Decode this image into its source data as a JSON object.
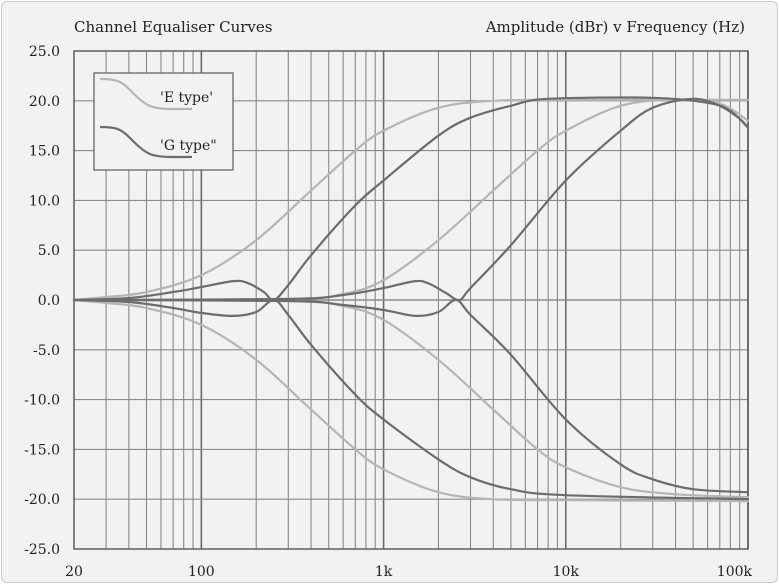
{
  "chart_data": {
    "type": "line",
    "title_left": "Channel Equaliser Curves",
    "title_right": "Amplitude (dBr)  v  Frequency (Hz)",
    "xscale": "log",
    "xlim": [
      20,
      100000
    ],
    "ylim": [
      -25,
      25
    ],
    "x_ticks": [
      {
        "value": 20,
        "label": "20"
      },
      {
        "value": 100,
        "label": "100"
      },
      {
        "value": 1000,
        "label": "1k"
      },
      {
        "value": 10000,
        "label": "10k"
      },
      {
        "value": 100000,
        "label": "100k"
      }
    ],
    "y_ticks": [
      {
        "value": 25,
        "label": "25.0"
      },
      {
        "value": 20,
        "label": "20.0"
      },
      {
        "value": 15,
        "label": "15.0"
      },
      {
        "value": 10,
        "label": "10.0"
      },
      {
        "value": 5,
        "label": "5.0"
      },
      {
        "value": 0,
        "label": "0.0"
      },
      {
        "value": -5,
        "label": "-5.0"
      },
      {
        "value": -10,
        "label": "-10.0"
      },
      {
        "value": -15,
        "label": "-15.0"
      },
      {
        "value": -20,
        "label": "-20.0"
      },
      {
        "value": -25,
        "label": "-25.0"
      }
    ],
    "grid": true,
    "legend_position": "top-left",
    "legend": [
      {
        "label": "'E type'",
        "color": "#b5b5b5"
      },
      {
        "label": "'G type\"",
        "color": "#6c6c6c"
      }
    ],
    "series": [
      {
        "group": "E",
        "color": "#b5b5b5",
        "points": [
          [
            20,
            0
          ],
          [
            30,
            0.3
          ],
          [
            50,
            0.8
          ],
          [
            100,
            2.5
          ],
          [
            200,
            6
          ],
          [
            400,
            11
          ],
          [
            700,
            15
          ],
          [
            1000,
            17
          ],
          [
            2000,
            19.3
          ],
          [
            4000,
            20
          ],
          [
            10000,
            20.1
          ],
          [
            100000,
            20.1
          ]
        ]
      },
      {
        "group": "E",
        "color": "#b5b5b5",
        "points": [
          [
            20,
            0
          ],
          [
            30,
            -0.3
          ],
          [
            50,
            -0.8
          ],
          [
            100,
            -2.5
          ],
          [
            200,
            -6
          ],
          [
            400,
            -11
          ],
          [
            700,
            -15
          ],
          [
            1000,
            -17
          ],
          [
            2000,
            -19.3
          ],
          [
            4000,
            -20
          ],
          [
            10000,
            -20.1
          ],
          [
            100000,
            -20.2
          ]
        ]
      },
      {
        "group": "E",
        "color": "#b5b5b5",
        "points": [
          [
            20,
            0
          ],
          [
            300,
            0.1
          ],
          [
            600,
            0.6
          ],
          [
            1000,
            2
          ],
          [
            2000,
            6
          ],
          [
            4000,
            11
          ],
          [
            7000,
            15
          ],
          [
            10000,
            17
          ],
          [
            20000,
            19.5
          ],
          [
            40000,
            20.1
          ],
          [
            70000,
            19.7
          ],
          [
            100000,
            18
          ]
        ]
      },
      {
        "group": "E",
        "color": "#b5b5b5",
        "points": [
          [
            20,
            0
          ],
          [
            300,
            -0.1
          ],
          [
            600,
            -0.6
          ],
          [
            1000,
            -2
          ],
          [
            2000,
            -6
          ],
          [
            4000,
            -11
          ],
          [
            7000,
            -15
          ],
          [
            10000,
            -16.8
          ],
          [
            20000,
            -18.8
          ],
          [
            40000,
            -19.5
          ],
          [
            100000,
            -19.8
          ]
        ]
      },
      {
        "group": "G",
        "color": "#6c6c6c",
        "points": [
          [
            20,
            0
          ],
          [
            40,
            0.2
          ],
          [
            70,
            0.8
          ],
          [
            100,
            1.3
          ],
          [
            150,
            1.9
          ],
          [
            180,
            1.7
          ],
          [
            220,
            0.8
          ],
          [
            250,
            0
          ],
          [
            300,
            1.5
          ],
          [
            400,
            4.5
          ],
          [
            700,
            9.5
          ],
          [
            1000,
            12
          ],
          [
            2000,
            16.5
          ],
          [
            3000,
            18.3
          ],
          [
            5000,
            19.5
          ],
          [
            8000,
            20.2
          ],
          [
            30000,
            20.3
          ],
          [
            60000,
            19.8
          ],
          [
            80000,
            19
          ],
          [
            100000,
            17.3
          ]
        ]
      },
      {
        "group": "G",
        "color": "#6c6c6c",
        "points": [
          [
            20,
            0
          ],
          [
            40,
            -0.2
          ],
          [
            70,
            -0.8
          ],
          [
            100,
            -1.3
          ],
          [
            150,
            -1.6
          ],
          [
            200,
            -1.2
          ],
          [
            250,
            0
          ],
          [
            300,
            -1.5
          ],
          [
            400,
            -4.5
          ],
          [
            700,
            -9.5
          ],
          [
            1000,
            -12
          ],
          [
            2000,
            -16
          ],
          [
            3000,
            -17.8
          ],
          [
            5000,
            -19
          ],
          [
            10000,
            -19.6
          ],
          [
            100000,
            -20
          ]
        ]
      },
      {
        "group": "G",
        "color": "#6c6c6c",
        "points": [
          [
            20,
            0
          ],
          [
            300,
            0.1
          ],
          [
            600,
            0.5
          ],
          [
            1000,
            1.2
          ],
          [
            1500,
            1.9
          ],
          [
            1800,
            1.6
          ],
          [
            2200,
            0.7
          ],
          [
            2600,
            0
          ],
          [
            3000,
            1.2
          ],
          [
            5000,
            5.5
          ],
          [
            10000,
            12
          ],
          [
            20000,
            17
          ],
          [
            30000,
            19.3
          ],
          [
            50000,
            20.2
          ],
          [
            70000,
            19.5
          ],
          [
            90000,
            18.2
          ],
          [
            100000,
            17.3
          ]
        ]
      },
      {
        "group": "G",
        "color": "#6c6c6c",
        "points": [
          [
            20,
            0
          ],
          [
            300,
            -0.1
          ],
          [
            600,
            -0.5
          ],
          [
            1000,
            -1
          ],
          [
            1500,
            -1.6
          ],
          [
            2000,
            -1.2
          ],
          [
            2500,
            0
          ],
          [
            3000,
            -1.5
          ],
          [
            5000,
            -5.5
          ],
          [
            10000,
            -12
          ],
          [
            20000,
            -16.5
          ],
          [
            30000,
            -18
          ],
          [
            50000,
            -19
          ],
          [
            100000,
            -19.3
          ]
        ]
      }
    ]
  }
}
